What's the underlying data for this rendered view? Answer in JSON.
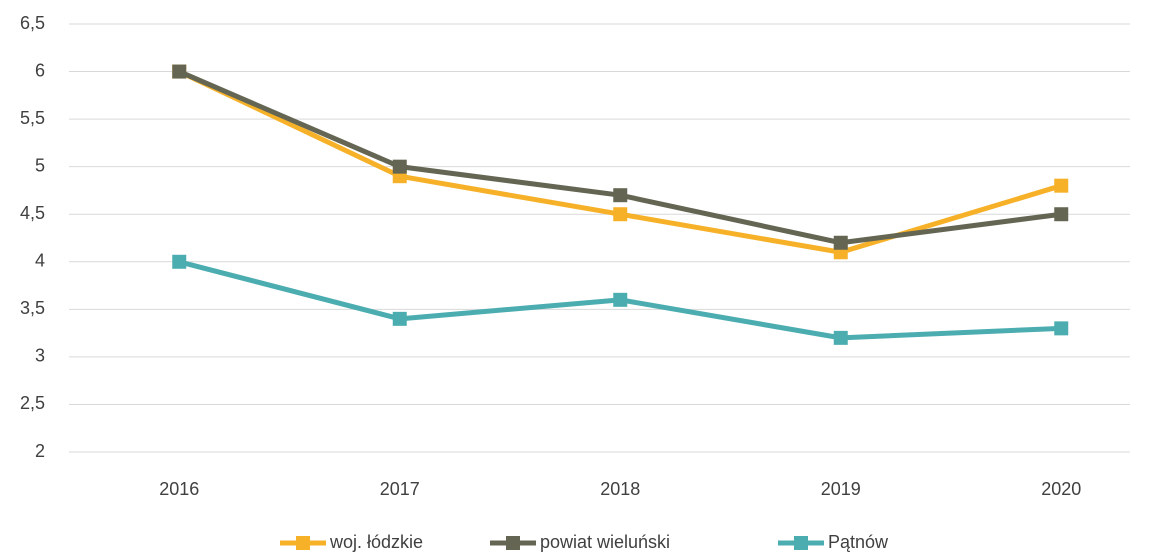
{
  "chart_data": {
    "type": "line",
    "categories": [
      "2016",
      "2017",
      "2018",
      "2019",
      "2020"
    ],
    "series": [
      {
        "name": "woj. łódzkie",
        "color": "#f6b128",
        "values": [
          6,
          4.9,
          4.5,
          4.1,
          4.8
        ]
      },
      {
        "name": "powiat wieluński",
        "color": "#646653",
        "values": [
          6,
          5,
          4.7,
          4.2,
          4.5
        ]
      },
      {
        "name": "Pątnów",
        "color": "#4cadb1",
        "values": [
          4,
          3.4,
          3.6,
          3.2,
          3.3
        ]
      }
    ],
    "ylim": [
      2,
      6.5
    ],
    "yticks": [
      2,
      {
        "value": 2.5,
        "label": "2,5"
      },
      3,
      {
        "value": 3.5,
        "label": "3,5"
      },
      4,
      {
        "value": 4.5,
        "label": "4,5"
      },
      5,
      {
        "value": 5.5,
        "label": "5,5"
      },
      6,
      {
        "value": 6.5,
        "label": "6,5"
      }
    ],
    "grid": true,
    "legend": "bottom"
  }
}
